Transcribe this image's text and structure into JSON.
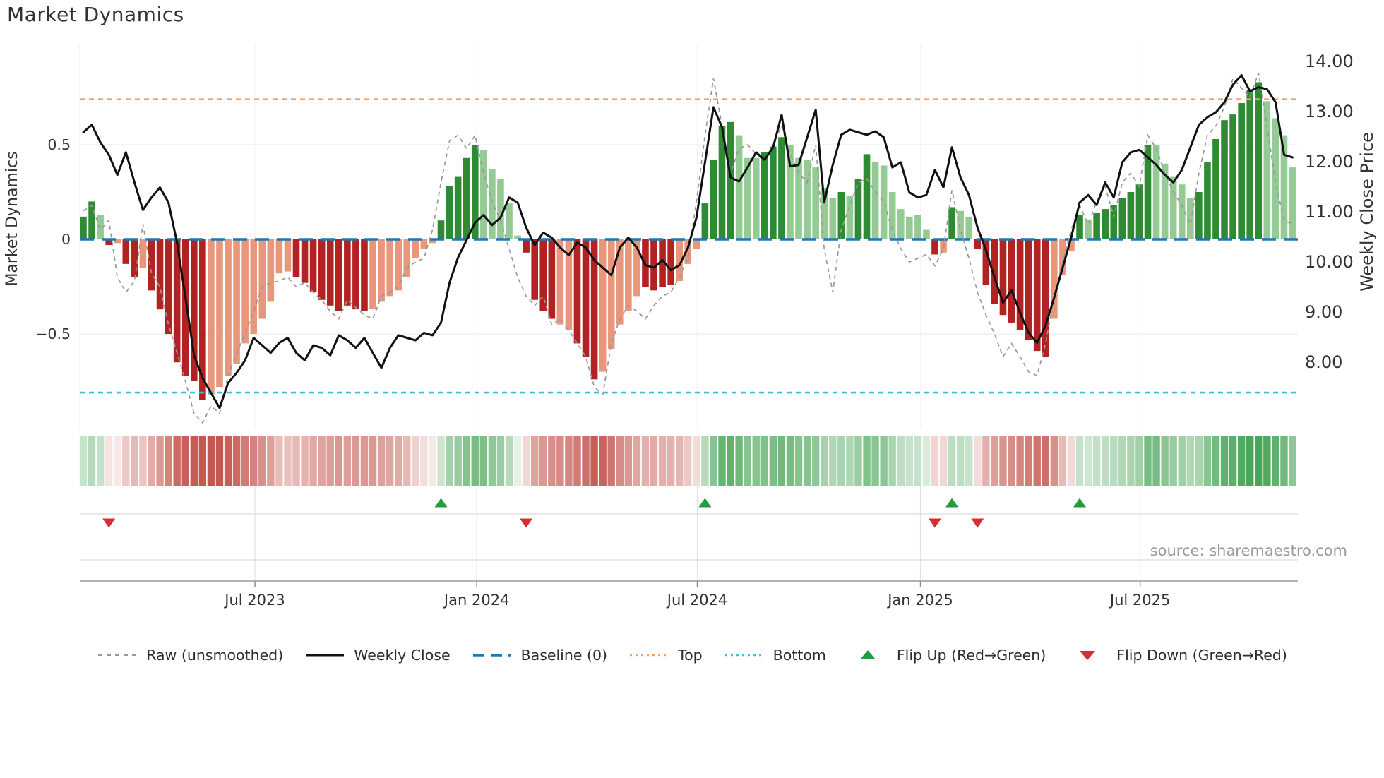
{
  "title": "Market Dynamics",
  "source": "source: sharemaestro.com",
  "chart_data": {
    "type": "bar",
    "title": "Market Dynamics",
    "x_start_week_of": "2023-02-13",
    "weeks": 143,
    "x_ticks": [
      {
        "label": "Jul 2023",
        "week": 20.15
      },
      {
        "label": "Jan 2024",
        "week": 46.2
      },
      {
        "label": "Jul 2024",
        "week": 72.1
      },
      {
        "label": "Jan 2025",
        "week": 98.3
      },
      {
        "label": "Jul 2025",
        "week": 124.1
      }
    ],
    "left_axis": {
      "title": "Market Dynamics",
      "tick_labels": [
        "0.5",
        "0",
        "−0.5"
      ],
      "tick_values": [
        0.5,
        0,
        -0.5
      ],
      "range": [
        -1.03,
        1.03
      ]
    },
    "right_axis": {
      "title": "Weekly Close Price",
      "tick_values": [
        14,
        13,
        12,
        11,
        10,
        9,
        8
      ],
      "tick_format": "2dp"
    },
    "baseline": 0,
    "top_level": 0.74,
    "bottom_level": -0.81,
    "oscillator": {
      "values": [
        0.12,
        0.2,
        0.13,
        -0.03,
        -0.02,
        -0.13,
        -0.2,
        -0.15,
        -0.27,
        -0.37,
        -0.5,
        -0.65,
        -0.72,
        -0.75,
        -0.85,
        -0.82,
        -0.78,
        -0.72,
        -0.66,
        -0.55,
        -0.5,
        -0.42,
        -0.33,
        -0.18,
        -0.17,
        -0.2,
        -0.23,
        -0.28,
        -0.32,
        -0.35,
        -0.38,
        -0.35,
        -0.37,
        -0.38,
        -0.37,
        -0.33,
        -0.3,
        -0.27,
        -0.2,
        -0.1,
        -0.05,
        -0.02,
        0.1,
        0.28,
        0.33,
        0.43,
        0.5,
        0.47,
        0.37,
        0.32,
        0.19,
        0.02,
        -0.07,
        -0.32,
        -0.38,
        -0.42,
        -0.45,
        -0.48,
        -0.55,
        -0.62,
        -0.74,
        -0.7,
        -0.58,
        -0.45,
        -0.38,
        -0.3,
        -0.25,
        -0.27,
        -0.25,
        -0.24,
        -0.22,
        -0.13,
        -0.05,
        0.19,
        0.42,
        0.6,
        0.62,
        0.55,
        0.43,
        0.43,
        0.46,
        0.49,
        0.54,
        0.5,
        0.43,
        0.42,
        0.38,
        0.27,
        0.22,
        0.25,
        0.23,
        0.32,
        0.45,
        0.41,
        0.39,
        0.25,
        0.16,
        0.12,
        0.13,
        0.05,
        -0.08,
        -0.07,
        0.17,
        0.15,
        0.12,
        -0.05,
        -0.24,
        -0.34,
        -0.4,
        -0.44,
        -0.48,
        -0.53,
        -0.59,
        -0.62,
        -0.42,
        -0.19,
        -0.06,
        0.13,
        0.1,
        0.14,
        0.16,
        0.18,
        0.22,
        0.25,
        0.29,
        0.5,
        0.5,
        0.4,
        0.33,
        0.29,
        0.22,
        0.25,
        0.41,
        0.53,
        0.63,
        0.66,
        0.72,
        0.79,
        0.83,
        0.73,
        0.64,
        0.55,
        0.38
      ],
      "shade": [
        "dg",
        "dg",
        "lg",
        "dr",
        "lr",
        "dr",
        "dr",
        "lr",
        "dr",
        "dr",
        "dr",
        "dr",
        "dr",
        "dr",
        "dr",
        "lr",
        "lr",
        "lr",
        "lr",
        "lr",
        "lr",
        "lr",
        "lr",
        "lr",
        "lr",
        "dr",
        "dr",
        "dr",
        "dr",
        "dr",
        "dr",
        "dr",
        "dr",
        "dr",
        "lr",
        "lr",
        "lr",
        "lr",
        "lr",
        "lr",
        "lr",
        "lr",
        "dg",
        "dg",
        "dg",
        "dg",
        "dg",
        "lg",
        "lg",
        "lg",
        "lg",
        "lg",
        "dr",
        "dr",
        "dr",
        "dr",
        "lr",
        "lr",
        "dr",
        "dr",
        "dr",
        "lr",
        "lr",
        "lr",
        "lr",
        "lr",
        "dr",
        "dr",
        "dr",
        "dr",
        "lr",
        "lr",
        "lr",
        "dg",
        "dg",
        "dg",
        "dg",
        "lg",
        "lg",
        "lg",
        "dg",
        "dg",
        "dg",
        "lg",
        "lg",
        "lg",
        "lg",
        "lg",
        "lg",
        "dg",
        "lg",
        "dg",
        "dg",
        "lg",
        "lg",
        "lg",
        "lg",
        "lg",
        "lg",
        "lg",
        "dr",
        "lr",
        "dg",
        "lg",
        "lg",
        "dr",
        "dr",
        "dr",
        "dr",
        "dr",
        "dr",
        "dr",
        "dr",
        "dr",
        "lr",
        "lr",
        "lr",
        "dg",
        "lg",
        "dg",
        "dg",
        "dg",
        "dg",
        "dg",
        "dg",
        "dg",
        "lg",
        "lg",
        "lg",
        "lg",
        "lg",
        "dg",
        "dg",
        "dg",
        "dg",
        "dg",
        "dg",
        "dg",
        "dg",
        "lg",
        "lg",
        "lg",
        "lg"
      ]
    },
    "raw_unsmoothed": [
      0.15,
      0.18,
      0.05,
      0.1,
      -0.2,
      -0.28,
      -0.22,
      0.08,
      -0.18,
      -0.25,
      -0.45,
      -0.6,
      -0.75,
      -0.92,
      -0.97,
      -0.88,
      -0.92,
      -0.72,
      -0.6,
      -0.5,
      -0.38,
      -0.25,
      -0.23,
      -0.22,
      -0.2,
      -0.25,
      -0.23,
      -0.28,
      -0.32,
      -0.38,
      -0.42,
      -0.32,
      -0.36,
      -0.4,
      -0.42,
      -0.3,
      -0.28,
      -0.25,
      -0.15,
      -0.12,
      -0.1,
      0.05,
      0.3,
      0.52,
      0.55,
      0.48,
      0.55,
      0.35,
      0.2,
      0.1,
      -0.05,
      -0.2,
      -0.3,
      -0.35,
      -0.3,
      -0.45,
      -0.42,
      -0.48,
      -0.55,
      -0.62,
      -0.78,
      -0.82,
      -0.55,
      -0.42,
      -0.35,
      -0.38,
      -0.42,
      -0.35,
      -0.3,
      -0.28,
      -0.2,
      -0.1,
      0.2,
      0.55,
      0.85,
      0.6,
      0.35,
      0.48,
      0.5,
      0.45,
      0.42,
      0.5,
      0.6,
      0.45,
      0.35,
      0.3,
      0.5,
      -0.05,
      -0.28,
      0.05,
      0.18,
      0.3,
      0.32,
      0.25,
      0.2,
      0.05,
      -0.05,
      -0.12,
      -0.1,
      -0.08,
      -0.14,
      -0.05,
      0.26,
      0.05,
      -0.1,
      -0.28,
      -0.4,
      -0.5,
      -0.62,
      -0.55,
      -0.62,
      -0.7,
      -0.72,
      -0.55,
      -0.3,
      -0.12,
      0.05,
      0.18,
      0.08,
      0.2,
      0.28,
      0.12,
      0.3,
      0.35,
      0.28,
      0.55,
      0.48,
      0.35,
      0.25,
      0.18,
      0.08,
      0.35,
      0.55,
      0.6,
      0.7,
      0.85,
      0.8,
      0.75,
      0.88,
      0.6,
      0.3,
      0.1,
      0.08
    ],
    "weekly_close": [
      12.6,
      12.75,
      12.4,
      12.15,
      11.75,
      12.2,
      11.6,
      11.05,
      11.3,
      11.5,
      11.2,
      10.4,
      9.3,
      8.15,
      7.7,
      7.4,
      7.1,
      7.6,
      7.8,
      8.05,
      8.5,
      8.35,
      8.2,
      8.4,
      8.5,
      8.2,
      8.05,
      8.35,
      8.3,
      8.15,
      8.55,
      8.45,
      8.3,
      8.5,
      8.2,
      7.9,
      8.3,
      8.55,
      8.5,
      8.45,
      8.6,
      8.55,
      8.8,
      9.6,
      10.1,
      10.45,
      10.8,
      10.95,
      10.75,
      10.9,
      11.3,
      11.2,
      10.7,
      10.35,
      10.6,
      10.5,
      10.3,
      10.15,
      10.4,
      10.3,
      10.05,
      9.9,
      9.75,
      10.3,
      10.5,
      10.3,
      9.95,
      9.9,
      10.05,
      9.85,
      9.95,
      10.3,
      10.9,
      12.0,
      13.1,
      12.7,
      11.7,
      11.62,
      11.9,
      12.2,
      12.05,
      12.3,
      12.95,
      11.92,
      11.95,
      12.5,
      13.05,
      11.2,
      11.95,
      12.55,
      12.65,
      12.6,
      12.55,
      12.62,
      12.5,
      11.9,
      12.0,
      11.4,
      11.3,
      11.35,
      11.85,
      11.5,
      12.3,
      11.7,
      11.35,
      10.7,
      10.25,
      9.7,
      9.2,
      9.45,
      9.0,
      8.6,
      8.4,
      8.75,
      9.3,
      9.9,
      10.5,
      11.2,
      11.35,
      11.15,
      11.6,
      11.3,
      12.0,
      12.2,
      12.25,
      12.1,
      11.95,
      11.75,
      11.6,
      11.85,
      12.3,
      12.75,
      12.9,
      13.0,
      13.2,
      13.55,
      13.74,
      13.42,
      13.5,
      13.46,
      13.2,
      12.15,
      12.1
    ],
    "flip_up_weeks": [
      42,
      73,
      102,
      117
    ],
    "flip_down_weeks": [
      3,
      52,
      100,
      105
    ],
    "legend_position": "bottom",
    "grid": "horizontal at +0.5 / -0.5, vertical at half-year ticks"
  },
  "colors": {
    "bar_dark_green": "#2e8b34",
    "bar_light_green": "#94ca94",
    "bar_dark_red": "#b22222",
    "bar_light_red": "#e8977c",
    "weekly_close": "#111111",
    "raw": "#999999",
    "baseline": "#1f77b4",
    "top": "#f5a35c",
    "bottom": "#3bbde8",
    "flip_up": "#1f9d3f",
    "flip_down": "#d62f2f",
    "heat_red": "#c04a42",
    "heat_green": "#3c9e4b",
    "grid": "#ecedf2",
    "band_line": "#dcdcdc",
    "spine": "#b3b3b3",
    "text": "#333333",
    "source_text": "#9b9b9b"
  },
  "legend": {
    "items": [
      {
        "label": "Raw (unsmoothed)",
        "sample": "dash-gray"
      },
      {
        "label": "Weekly Close",
        "sample": "solid-black"
      },
      {
        "label": "Baseline (0)",
        "sample": "dash-blue"
      },
      {
        "label": "Top",
        "sample": "dot-orange"
      },
      {
        "label": "Bottom",
        "sample": "dot-cyan"
      },
      {
        "label": "Flip Up (Red→Green)",
        "sample": "tri-up"
      },
      {
        "label": "Flip Down (Green→Red)",
        "sample": "tri-down"
      }
    ]
  }
}
